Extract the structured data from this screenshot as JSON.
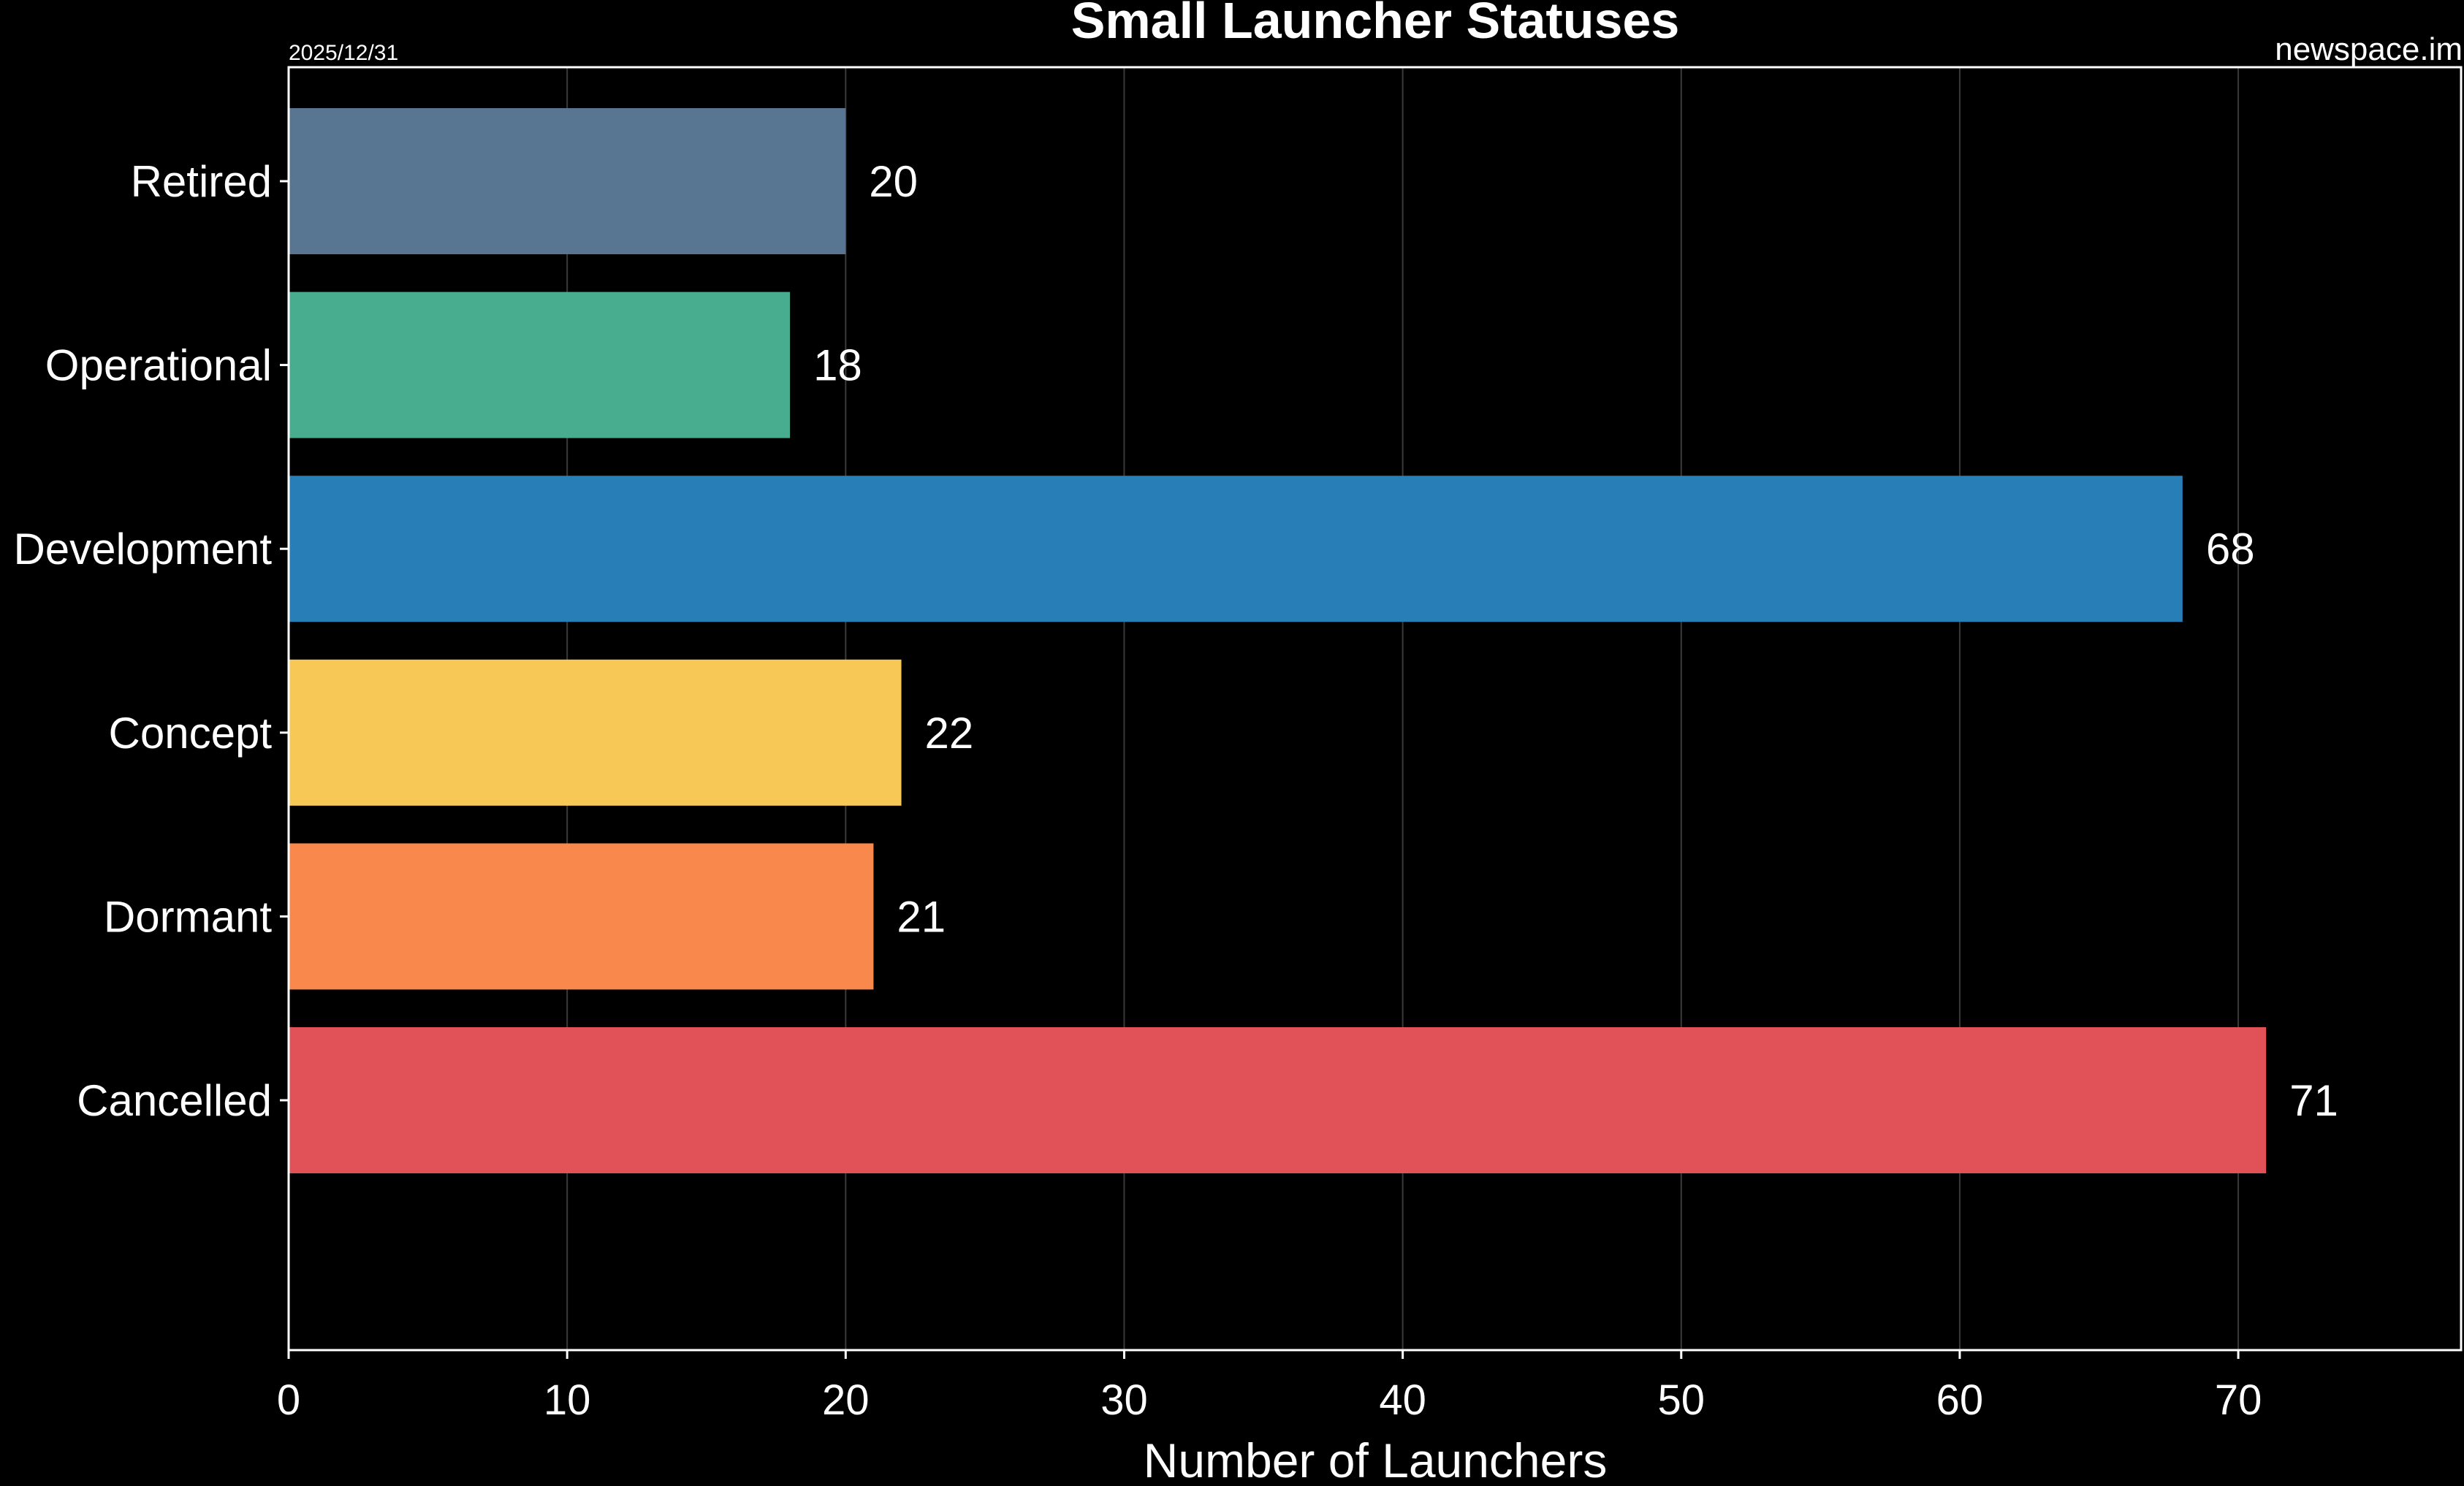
{
  "header": {
    "date": "2025/12/31",
    "source": "newspace.im"
  },
  "chart_data": {
    "type": "bar",
    "orientation": "horizontal",
    "title": "Small Launcher Statuses",
    "xlabel": "Number of Launchers",
    "ylabel": "",
    "categories": [
      "Retired",
      "Operational",
      "Development",
      "Concept",
      "Dormant",
      "Cancelled"
    ],
    "values": [
      20,
      18,
      68,
      22,
      21,
      71
    ],
    "bar_colors": [
      "#587592",
      "#47ad8e",
      "#287eb6",
      "#f7c856",
      "#f8884c",
      "#e05158"
    ],
    "xlim": [
      0,
      78
    ],
    "xticks": [
      0,
      10,
      20,
      30,
      40,
      50,
      60,
      70
    ],
    "grid": "vertical",
    "data_labels": true,
    "legend": "none",
    "background": "#000000",
    "text_color": "#ffffff"
  }
}
